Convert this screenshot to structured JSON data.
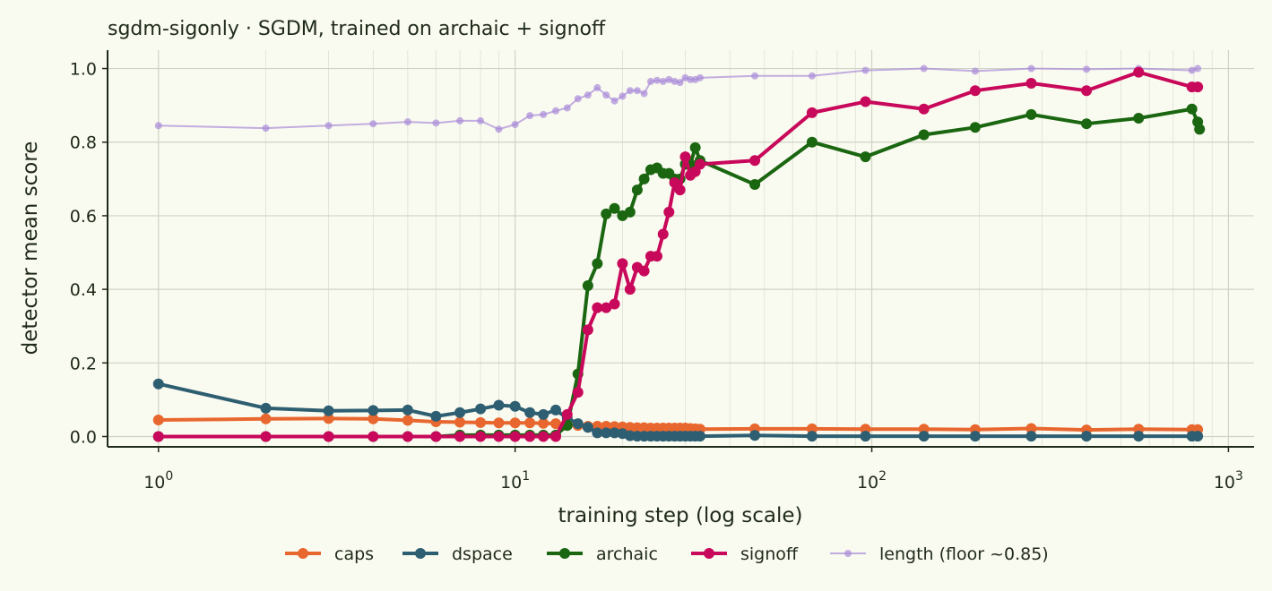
{
  "chart_data": {
    "type": "line",
    "title": "sgdm-sigonly · SGDM, trained on archaic + signoff",
    "xlabel": "training step (log scale)",
    "ylabel": "detector mean score",
    "xscale": "log",
    "xlim": [
      0.72,
      1180
    ],
    "ylim": [
      -0.028,
      1.05
    ],
    "xticks": [
      {
        "value": 1,
        "base": "10",
        "exp": "0"
      },
      {
        "value": 10,
        "base": "10",
        "exp": "1"
      },
      {
        "value": 100,
        "base": "10",
        "exp": "2"
      },
      {
        "value": 1000,
        "base": "10",
        "exp": "3"
      }
    ],
    "yticks": [
      "0.0",
      "0.2",
      "0.4",
      "0.6",
      "0.8",
      "1.0"
    ],
    "grid": true,
    "legend_position": "bottom-center",
    "series": [
      {
        "name": "caps",
        "color": "#e8672f",
        "style": "bold",
        "x": [
          1,
          2,
          3,
          4,
          5,
          6,
          7,
          8,
          9,
          10,
          11,
          12,
          13,
          14,
          15,
          16,
          17,
          18,
          19,
          20,
          21,
          22,
          23,
          24,
          25,
          26,
          27,
          28,
          29,
          30,
          31,
          32,
          33,
          47,
          68,
          96,
          140,
          195,
          280,
          400,
          560,
          790,
          820
        ],
        "y": [
          0.045,
          0.048,
          0.049,
          0.048,
          0.044,
          0.04,
          0.039,
          0.038,
          0.037,
          0.037,
          0.037,
          0.036,
          0.035,
          0.032,
          0.03,
          0.028,
          0.028,
          0.028,
          0.027,
          0.026,
          0.025,
          0.024,
          0.024,
          0.023,
          0.023,
          0.023,
          0.023,
          0.023,
          0.023,
          0.023,
          0.022,
          0.021,
          0.02,
          0.021,
          0.021,
          0.02,
          0.02,
          0.019,
          0.022,
          0.018,
          0.02,
          0.019,
          0.019
        ]
      },
      {
        "name": "dspace",
        "color": "#2e5e72",
        "style": "bold",
        "x": [
          1,
          2,
          3,
          4,
          5,
          6,
          7,
          8,
          9,
          10,
          11,
          12,
          13,
          14,
          15,
          16,
          17,
          18,
          19,
          20,
          21,
          22,
          23,
          24,
          25,
          26,
          27,
          28,
          29,
          30,
          31,
          32,
          33,
          47,
          68,
          96,
          140,
          195,
          280,
          400,
          560,
          790,
          820
        ],
        "y": [
          0.143,
          0.077,
          0.07,
          0.071,
          0.072,
          0.055,
          0.065,
          0.075,
          0.085,
          0.082,
          0.065,
          0.06,
          0.072,
          0.05,
          0.035,
          0.025,
          0.01,
          0.01,
          0.01,
          0.008,
          0.002,
          0.001,
          0.001,
          0.001,
          0.001,
          0.001,
          0.001,
          0.001,
          0.001,
          0.001,
          0.001,
          0.001,
          0.001,
          0.003,
          0.001,
          0.001,
          0.001,
          0.001,
          0.001,
          0.001,
          0.001,
          0.001,
          0.001
        ]
      },
      {
        "name": "archaic",
        "color": "#1a6611",
        "style": "bold",
        "x": [
          1,
          2,
          3,
          4,
          5,
          6,
          7,
          8,
          9,
          10,
          11,
          12,
          13,
          14,
          15,
          16,
          17,
          18,
          19,
          20,
          21,
          22,
          23,
          24,
          25,
          26,
          27,
          28,
          29,
          30,
          31,
          32,
          33,
          47,
          68,
          96,
          140,
          195,
          280,
          400,
          560,
          790,
          820,
          830
        ],
        "y": [
          0.0,
          0.0,
          0.0,
          0.0,
          0.0,
          0.0,
          0.004,
          0.004,
          0.004,
          0.004,
          0.004,
          0.004,
          0.004,
          0.03,
          0.17,
          0.41,
          0.47,
          0.605,
          0.62,
          0.6,
          0.61,
          0.67,
          0.7,
          0.725,
          0.73,
          0.715,
          0.715,
          0.7,
          0.7,
          0.74,
          0.74,
          0.785,
          0.75,
          0.685,
          0.8,
          0.76,
          0.82,
          0.84,
          0.875,
          0.85,
          0.865,
          0.89,
          0.855,
          0.835
        ]
      },
      {
        "name": "signoff",
        "color": "#c8085a",
        "style": "bold",
        "x": [
          1,
          2,
          3,
          4,
          5,
          6,
          7,
          8,
          9,
          10,
          11,
          12,
          13,
          14,
          15,
          16,
          17,
          18,
          19,
          20,
          21,
          22,
          23,
          24,
          25,
          26,
          27,
          28,
          29,
          30,
          31,
          32,
          33,
          47,
          68,
          96,
          140,
          195,
          280,
          400,
          560,
          790,
          820
        ],
        "y": [
          0.0,
          0.0,
          0.0,
          0.0,
          0.0,
          0.0,
          0.0,
          0.0,
          0.0,
          0.0,
          0.0,
          0.0,
          0.0,
          0.06,
          0.12,
          0.29,
          0.35,
          0.35,
          0.36,
          0.47,
          0.4,
          0.46,
          0.45,
          0.49,
          0.49,
          0.55,
          0.61,
          0.69,
          0.67,
          0.76,
          0.71,
          0.72,
          0.74,
          0.75,
          0.88,
          0.91,
          0.89,
          0.94,
          0.96,
          0.94,
          0.99,
          0.95,
          0.95
        ]
      },
      {
        "name": "length (floor ~0.85)",
        "color": "#a98bd8",
        "style": "light",
        "x": [
          1,
          2,
          3,
          4,
          5,
          6,
          7,
          8,
          9,
          10,
          11,
          12,
          13,
          14,
          15,
          16,
          17,
          18,
          19,
          20,
          21,
          22,
          23,
          24,
          25,
          26,
          27,
          28,
          29,
          30,
          31,
          32,
          33,
          47,
          68,
          96,
          140,
          195,
          280,
          400,
          560,
          790,
          820
        ],
        "y": [
          0.845,
          0.838,
          0.845,
          0.85,
          0.855,
          0.852,
          0.858,
          0.858,
          0.835,
          0.848,
          0.872,
          0.875,
          0.885,
          0.893,
          0.918,
          0.928,
          0.948,
          0.928,
          0.912,
          0.925,
          0.94,
          0.94,
          0.932,
          0.965,
          0.968,
          0.965,
          0.97,
          0.965,
          0.962,
          0.975,
          0.97,
          0.97,
          0.975,
          0.98,
          0.98,
          0.995,
          1.0,
          0.993,
          1.0,
          0.998,
          1.0,
          0.995,
          1.0
        ]
      }
    ]
  }
}
